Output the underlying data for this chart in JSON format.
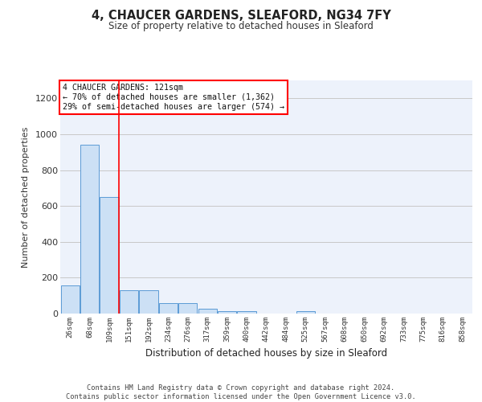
{
  "title1": "4, CHAUCER GARDENS, SLEAFORD, NG34 7FY",
  "title2": "Size of property relative to detached houses in Sleaford",
  "xlabel": "Distribution of detached houses by size in Sleaford",
  "ylabel": "Number of detached properties",
  "bin_labels": [
    "26sqm",
    "68sqm",
    "109sqm",
    "151sqm",
    "192sqm",
    "234sqm",
    "276sqm",
    "317sqm",
    "359sqm",
    "400sqm",
    "442sqm",
    "484sqm",
    "525sqm",
    "567sqm",
    "608sqm",
    "650sqm",
    "692sqm",
    "733sqm",
    "775sqm",
    "816sqm",
    "858sqm"
  ],
  "bar_heights": [
    155,
    940,
    650,
    130,
    130,
    60,
    60,
    25,
    13,
    13,
    0,
    0,
    13,
    0,
    0,
    0,
    0,
    0,
    0,
    0,
    0
  ],
  "bar_color": "#cce0f5",
  "bar_edge_color": "#5b9bd5",
  "grid_color": "#c8c8c8",
  "bg_color": "#edf2fb",
  "vline_x": 2.48,
  "vline_color": "red",
  "annotation_text": "4 CHAUCER GARDENS: 121sqm\n← 70% of detached houses are smaller (1,362)\n29% of semi-detached houses are larger (574) →",
  "annotation_box_color": "white",
  "annotation_box_edge": "red",
  "footer": "Contains HM Land Registry data © Crown copyright and database right 2024.\nContains public sector information licensed under the Open Government Licence v3.0.",
  "ylim": [
    0,
    1300
  ],
  "yticks": [
    0,
    200,
    400,
    600,
    800,
    1000,
    1200
  ]
}
